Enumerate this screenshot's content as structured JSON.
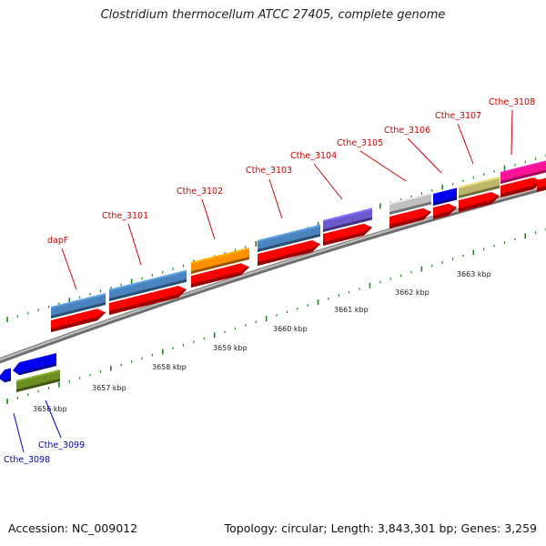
{
  "title": "Clostridium thermocellum ATCC 27405, complete genome",
  "footer": {
    "accession": "Accession: NC_009012",
    "stats": "Topology: circular; Length: 3,843,301 bp; Genes: 3,259"
  },
  "colors": {
    "forward_label": "#cc0000",
    "reverse_label": "#0000cc",
    "tick": "#1f8a1f",
    "cds": "#ff0000",
    "backbone": "#888888"
  },
  "scale_labels": [
    "3656 kbp",
    "3657 kbp",
    "3658 kbp",
    "3659 kbp",
    "3660 kbp",
    "3661 kbp",
    "3662 kbp",
    "3663 kbp"
  ],
  "forward_genes": [
    {
      "label": "dapF",
      "color": "#4a83bd"
    },
    {
      "label": "Cthe_3101",
      "color": "#4a83bd"
    },
    {
      "label": "Cthe_3102",
      "color": "#ff9000"
    },
    {
      "label": "Cthe_3103",
      "color": "#4a83bd"
    },
    {
      "label": "Cthe_3104",
      "color": "#6a5acd"
    },
    {
      "label": "Cthe_3105",
      "color": "#c0c0c0"
    },
    {
      "label": "Cthe_3106",
      "color": "#0000ee"
    },
    {
      "label": "Cthe_3107",
      "color": "#bdb76b"
    },
    {
      "label": "Cthe_3108",
      "color": "#ff1493"
    }
  ],
  "reverse_genes": [
    {
      "label": "Cthe_3098",
      "color": "#0000ee"
    },
    {
      "label": "Cthe_3099",
      "color": "#6b8e23"
    }
  ]
}
